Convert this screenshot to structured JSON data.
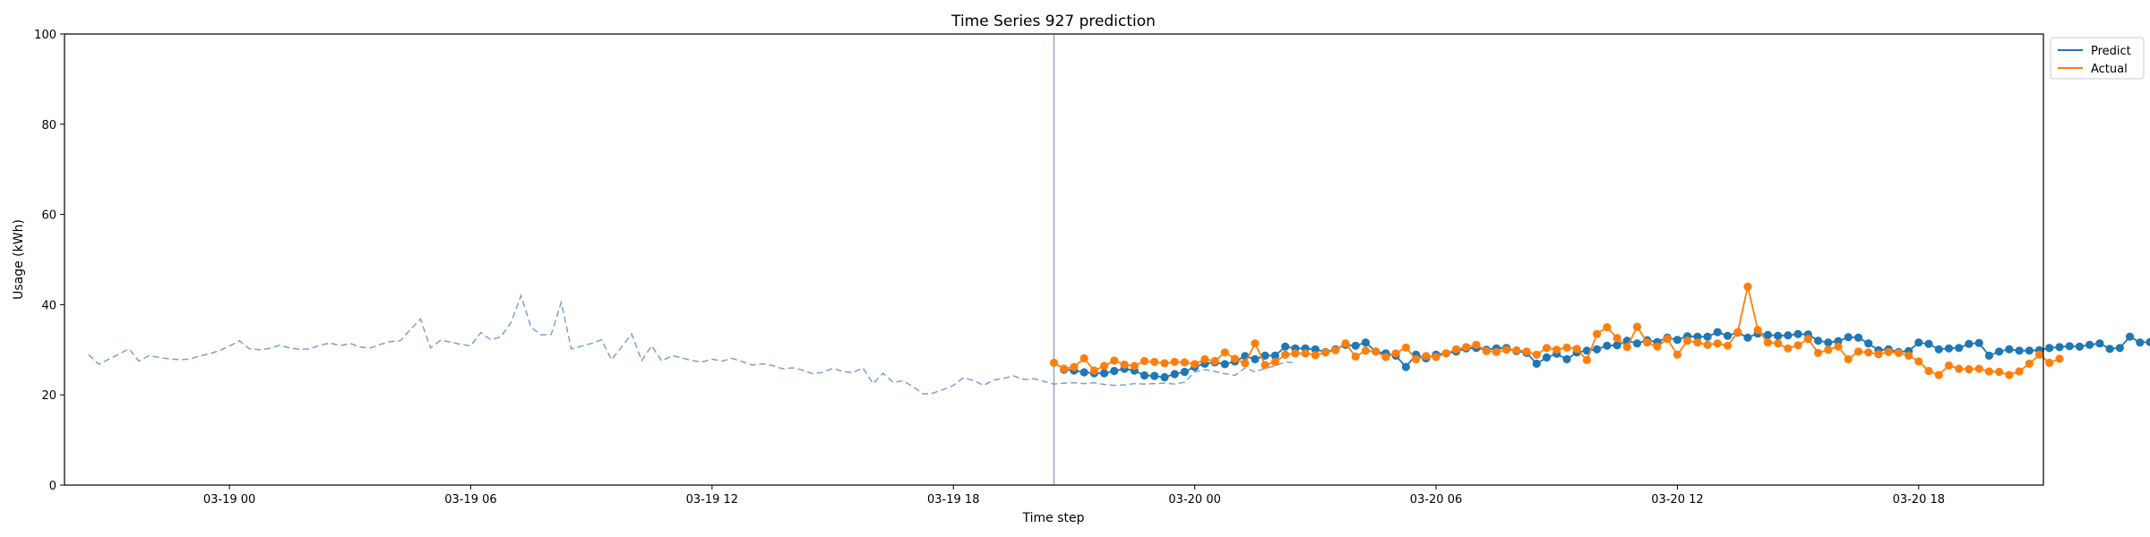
{
  "chart_data": {
    "type": "line",
    "title": "Time Series 927 prediction",
    "xlabel": "Time step",
    "ylabel": "Usage (kWh)",
    "ylim": [
      0,
      100
    ],
    "yticks": [
      0,
      20,
      40,
      60,
      80,
      100
    ],
    "x_tick_labels": [
      "03-19 00",
      "03-19 06",
      "03-19 12",
      "03-19 18",
      "03-20 00",
      "03-20 06",
      "03-20 12",
      "03-20 18"
    ],
    "legend": {
      "position": "top-right-outside",
      "entries": [
        "Predict",
        "Actual"
      ]
    },
    "grid": false,
    "colors": {
      "predict": "#1f77b4",
      "actual": "#ff7f0e",
      "history": "#7f9fc8",
      "cutoff": "#8ba0d0"
    },
    "cutoff_time": "03-19 20:30",
    "history": {
      "style": "dashed",
      "start": "03-18 20:30",
      "step_minutes": 15,
      "values": [
        28.9,
        26.8,
        27.9,
        29.0,
        30.2,
        27.5,
        28.7,
        28.3,
        28.0,
        27.8,
        27.9,
        28.6,
        29.1,
        29.8,
        30.8,
        32.0,
        30.2,
        30.0,
        30.3,
        31.0,
        30.4,
        30.1,
        30.2,
        31.0,
        31.5,
        30.9,
        31.4,
        30.6,
        30.4,
        31.2,
        31.8,
        32.0,
        34.5,
        36.8,
        30.4,
        32.1,
        31.7,
        31.2,
        30.9,
        33.8,
        32.2,
        32.9,
        36.0,
        42.0,
        35.0,
        33.3,
        33.4,
        40.5,
        30.2,
        30.8,
        31.4,
        32.2,
        27.8,
        30.6,
        33.5,
        27.6,
        30.9,
        27.5,
        28.7,
        28.2,
        27.6,
        27.3,
        27.9,
        27.5,
        28.1,
        27.4,
        26.6,
        26.9,
        26.5,
        25.8,
        26.0,
        25.5,
        24.7,
        25.0,
        25.9,
        25.2,
        24.9,
        26.0,
        22.5,
        24.8,
        22.8,
        23.1,
        21.8,
        20.2,
        20.4,
        21.2,
        22.1,
        23.8,
        23.2,
        22.1,
        23.3,
        23.7,
        24.2,
        23.4,
        23.6,
        23.0,
        22.4,
        22.6,
        22.7,
        22.5,
        22.7,
        22.3,
        22.1,
        22.2,
        22.5,
        22.4,
        22.5,
        22.6,
        22.4,
        22.8,
        25.1,
        25.6,
        25.2,
        24.7,
        24.3,
        26.0,
        25.1,
        25.9,
        26.4,
        27.3,
        27.1
      ]
    },
    "series": [
      {
        "name": "Predict",
        "start": "03-19 20:45",
        "step_minutes": 15,
        "values": [
          25.6,
          25.4,
          25.0,
          24.8,
          24.8,
          25.3,
          25.8,
          25.4,
          24.3,
          24.2,
          23.9,
          24.6,
          25.1,
          26.2,
          26.9,
          27.2,
          26.8,
          27.4,
          28.6,
          27.9,
          28.7,
          28.7,
          30.7,
          30.3,
          30.3,
          30.1,
          29.5,
          30.1,
          31.1,
          30.9,
          31.6,
          29.6,
          29.2,
          28.7,
          26.2,
          28.9,
          28.1,
          28.9,
          29.2,
          29.6,
          30.3,
          30.4,
          30.0,
          30.3,
          30.4,
          29.7,
          29.3,
          26.9,
          28.3,
          29.1,
          27.9,
          29.4,
          29.8,
          30.1,
          30.9,
          31.0,
          32.0,
          31.4,
          32.1,
          31.7,
          32.7,
          32.2,
          33.0,
          32.9,
          32.9,
          33.9,
          33.1,
          33.8,
          32.7,
          33.6,
          33.3,
          33.1,
          33.2,
          33.5,
          33.4,
          32.0,
          31.6,
          31.9,
          32.8,
          32.7,
          31.4,
          29.9,
          30.1,
          29.5,
          29.7,
          31.6,
          31.3,
          30.1,
          30.3,
          30.4,
          31.3,
          31.5,
          28.7,
          29.6,
          30.1,
          29.8,
          29.8,
          29.9,
          30.4,
          30.6,
          30.8,
          30.7,
          31.1,
          31.4,
          30.2,
          30.4,
          32.9,
          31.6,
          31.7
        ]
      },
      {
        "name": "Actual",
        "start": "03-19 20:30",
        "step_minutes": 15,
        "values": [
          27.1,
          25.8,
          26.2,
          28.1,
          25.4,
          26.4,
          27.6,
          26.7,
          26.4,
          27.5,
          27.3,
          27.0,
          27.3,
          27.2,
          26.8,
          27.9,
          27.5,
          29.4,
          28.0,
          27.0,
          31.4,
          26.6,
          27.3,
          28.9,
          29.2,
          29.2,
          28.8,
          29.4,
          29.9,
          31.4,
          28.5,
          29.8,
          29.6,
          28.4,
          29.2,
          30.5,
          27.9,
          28.6,
          28.4,
          29.2,
          30.1,
          30.6,
          31.1,
          29.7,
          29.5,
          30.0,
          29.9,
          29.6,
          28.9,
          30.4,
          30.0,
          30.5,
          30.2,
          27.7,
          33.5,
          35.0,
          32.6,
          30.6,
          35.1,
          31.6,
          30.7,
          32.4,
          28.9,
          32.0,
          31.6,
          31.1,
          31.4,
          30.9,
          33.9,
          44.0,
          34.4,
          31.6,
          31.4,
          30.3,
          31.0,
          32.4,
          29.3,
          30.0,
          30.7,
          27.9,
          29.6,
          29.4,
          29.0,
          29.5,
          29.3,
          28.7,
          27.4,
          25.3,
          24.4,
          26.5,
          25.8,
          25.7,
          25.8,
          25.2,
          25.1,
          24.4,
          25.2,
          26.9,
          28.9,
          27.1,
          28.0
        ]
      }
    ]
  }
}
